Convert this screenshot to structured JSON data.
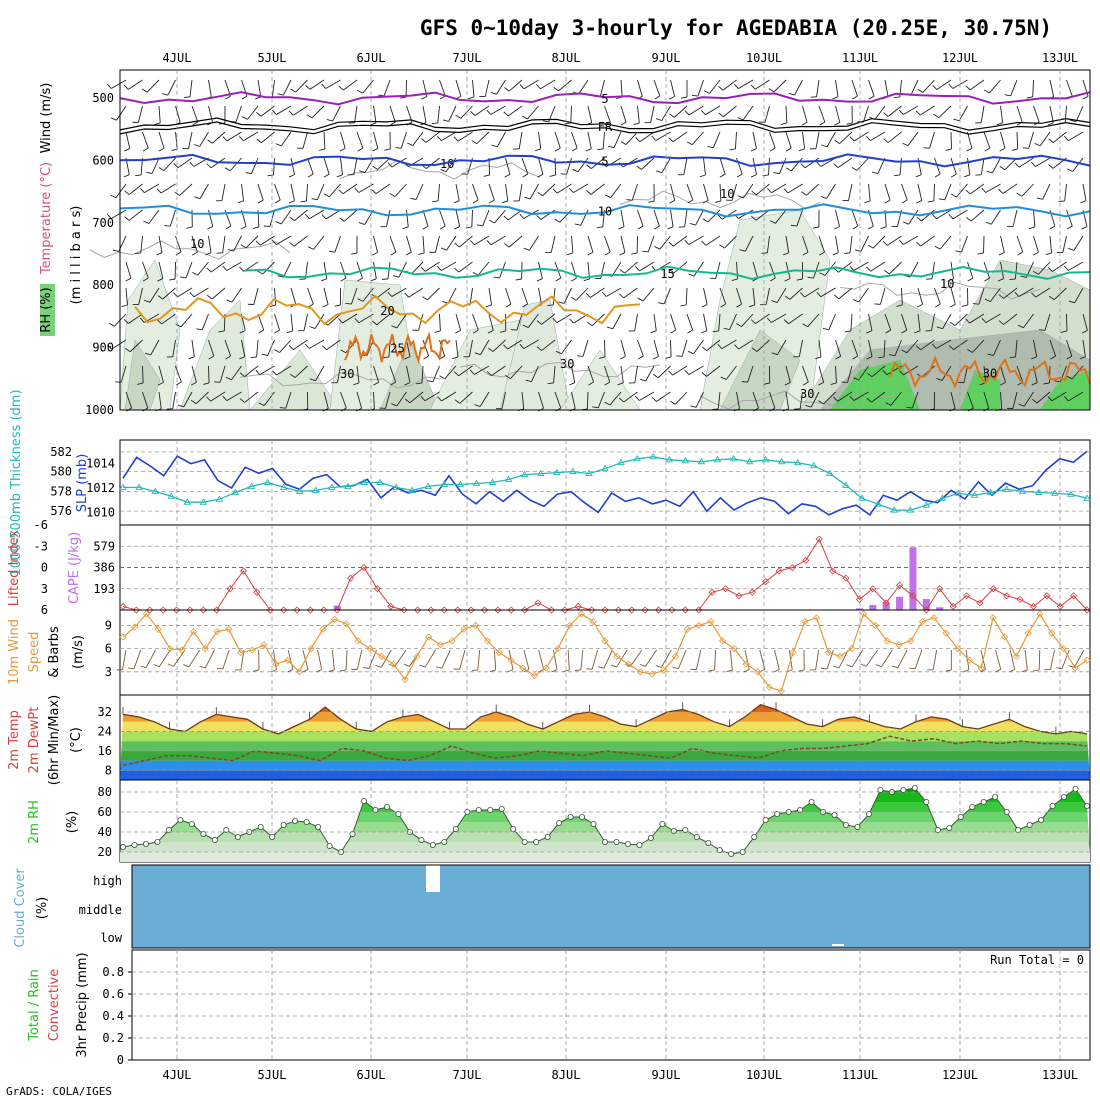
{
  "title": "GFS 0~10day 3-hourly for AGEDABIA (20.25E, 30.75N)",
  "credit": "GrADS: COLA/IGES",
  "colors": {
    "purple": "#9a1fb8",
    "blue": "#1f3fcf",
    "lightblue": "#1e8fd8",
    "teal": "#14b890",
    "orange": "#e39620",
    "darkorange": "#e0701a",
    "magenta": "#d0147a",
    "cyan": "#27b8b8",
    "red": "#d84040",
    "lilac": "#c070e8",
    "wind": "#e79a3a",
    "rhgreen": "#22c022",
    "cloud": "#6aaed6"
  },
  "chart_data": [
    {
      "panel": "upper_air",
      "type": "contour",
      "ylabels": [
        "Wind (m/s)",
        "Temperature (°C)",
        "RH (%)",
        "(m i l l i b a r s)"
      ],
      "xticks": [
        "4JUL",
        "5JUL",
        "6JUL",
        "7JUL",
        "8JUL",
        "9JUL",
        "10JUL",
        "11JUL",
        "12JUL",
        "13JUL"
      ],
      "yticks": [
        500,
        600,
        700,
        800,
        900,
        1000
      ],
      "ylim": [
        455,
        1000
      ],
      "contours": [
        {
          "label": "5",
          "color": "#9a1fb8",
          "level_mb": 500
        },
        {
          "label": "FR",
          "color": "#000000",
          "level_mb": 545
        },
        {
          "label": "5",
          "color": "#1f3fcf",
          "level_mb": 600
        },
        {
          "label": "10",
          "color": "#1e8fd8",
          "level_mb": 680
        },
        {
          "label": "15",
          "color": "#14b890",
          "level_mb": 780
        },
        {
          "label": "20",
          "color": "#e39620",
          "level_mb": 840
        },
        {
          "label": "25",
          "color": "#e0701a",
          "level_mb": 900
        },
        {
          "label": "30",
          "color": "#e0701a",
          "level_mb": 940
        }
      ],
      "grey_contours": [
        "10",
        "10",
        "10",
        "10",
        "30",
        "30",
        "30"
      ]
    },
    {
      "panel": "thickness_slp",
      "type": "line",
      "ylabels": [
        "1000-500mb Thickness (dm)",
        "SLP (mb)"
      ],
      "yticks_left": [
        576,
        578,
        580,
        582
      ],
      "yticks_right": [
        1010,
        1012,
        1014
      ],
      "series": [
        {
          "name": "SLP (mb)",
          "color": "#1f3fcf",
          "values": [
            1012.8,
            1014.5,
            1013.8,
            1013.0,
            1014.6,
            1014.0,
            1014.3,
            1012.6,
            1012.0,
            1013.7,
            1013.2,
            1013.6,
            1012.3,
            1011.9,
            1012.8,
            1013.1,
            1012.1,
            1012.2,
            1012.7,
            1011.2,
            1012.1,
            1011.6,
            1011.8,
            1011.4,
            1013.0,
            1011.5,
            1010.7,
            1011.7,
            1010.9,
            1011.8,
            1011.0,
            1010.5,
            1011.5,
            1011.7,
            1010.8,
            1010.0,
            1011.6,
            1010.9,
            1011.2,
            1010.7,
            1011.0,
            1010.5,
            1011.7,
            1010.1,
            1011.2,
            1010.2,
            1010.8,
            1011.2,
            1010.9,
            1009.9,
            1010.7,
            1010.5,
            1009.8,
            1010.3,
            1010.6,
            1009.8,
            1011.4,
            1011.0,
            1011.7,
            1011.0,
            1010.8,
            1011.8,
            1011.1,
            1012.5,
            1011.4,
            1012.4,
            1011.9,
            1012.2,
            1013.5,
            1014.4,
            1014.1,
            1015.0
          ]
        },
        {
          "name": "1000-500mb Thickness (dm)",
          "color": "#27b8b8",
          "values": [
            578.4,
            578.4,
            578.0,
            577.5,
            576.9,
            576.9,
            577.2,
            577.9,
            578.5,
            578.9,
            578.4,
            578.0,
            578.1,
            578.4,
            578.5,
            578.9,
            578.9,
            578.4,
            578.1,
            578.5,
            578.7,
            578.7,
            578.8,
            578.9,
            579.2,
            579.7,
            579.8,
            579.9,
            580.0,
            579.8,
            580.3,
            580.9,
            581.3,
            581.5,
            581.2,
            581.1,
            581.0,
            581.2,
            581.3,
            581.0,
            581.2,
            581.0,
            580.9,
            580.6,
            579.8,
            578.6,
            577.3,
            576.7,
            576.1,
            576.1,
            576.6,
            577.3,
            577.8,
            577.6,
            577.9,
            578.2,
            578.0,
            577.9,
            577.8,
            577.7,
            577.3
          ]
        }
      ]
    },
    {
      "panel": "lifted_cape",
      "type": "line",
      "ylabels": [
        "Lifted Index",
        "CAPE (J/kg)"
      ],
      "yticks_left": [
        -6,
        -3,
        0,
        3,
        6
      ],
      "yticks_right": [
        193,
        386,
        579
      ],
      "series": [
        {
          "name": "Lifted Index",
          "color": "#d84040",
          "values": [
            5.5,
            6.0,
            6.0,
            6.0,
            6.0,
            6.0,
            6.0,
            6.0,
            3.0,
            0.5,
            3.5,
            6.0,
            6.0,
            6.0,
            6.0,
            6.0,
            6.0,
            1.5,
            0.0,
            3.0,
            5.5,
            6.0,
            6.0,
            6.0,
            6.0,
            6.0,
            6.0,
            6.0,
            6.0,
            6.0,
            6.0,
            5.0,
            6.0,
            6.0,
            5.5,
            6.0,
            6.0,
            6.0,
            6.0,
            6.0,
            6.0,
            6.0,
            6.0,
            6.0,
            3.5,
            3.0,
            4.0,
            3.5,
            2.0,
            0.5,
            0.0,
            -1.0,
            -4.0,
            0.5,
            1.5,
            4.5,
            3.0,
            5.0,
            2.5,
            4.0,
            6.0,
            3.0,
            5.5,
            4.0,
            5.0,
            3.0,
            4.0,
            4.5,
            5.5,
            4.0,
            5.5,
            4.0,
            6.0
          ]
        },
        {
          "name": "CAPE (J/kg)",
          "color": "#c070e8",
          "values": [
            0,
            0,
            0,
            0,
            0,
            0,
            0,
            0,
            0,
            0,
            0,
            0,
            0,
            0,
            0,
            0,
            40,
            0,
            0,
            0,
            0,
            0,
            0,
            0,
            0,
            0,
            0,
            0,
            0,
            0,
            0,
            0,
            0,
            0,
            0,
            0,
            0,
            0,
            0,
            0,
            0,
            0,
            0,
            0,
            0,
            0,
            0,
            0,
            0,
            0,
            0,
            0,
            0,
            0,
            0,
            15,
            45,
            70,
            120,
            570,
            100,
            25,
            0,
            0,
            0,
            0,
            0,
            0,
            0,
            0,
            0,
            0,
            0
          ]
        }
      ]
    },
    {
      "panel": "wind10m",
      "type": "line",
      "ylabels": [
        "10m Wind Speed & Barbs",
        "(m/s)"
      ],
      "yticks": [
        3,
        6,
        9
      ],
      "series": [
        {
          "name": "10m Wind Speed",
          "color": "#e79a3a",
          "values": [
            7.5,
            8.8,
            10.5,
            8.5,
            6.0,
            5.8,
            8.2,
            6.0,
            8.2,
            8.5,
            5.5,
            5.8,
            6.5,
            4.0,
            4.5,
            3.0,
            6.0,
            8.5,
            9.8,
            9.2,
            7.0,
            6.0,
            5.0,
            4.0,
            2.0,
            5.0,
            7.5,
            6.5,
            7.0,
            8.5,
            9.0,
            7.0,
            5.5,
            4.5,
            3.5,
            2.5,
            3.5,
            6.0,
            9.0,
            10.5,
            9.5,
            7.0,
            5.0,
            4.0,
            3.0,
            2.7,
            3.2,
            5.0,
            8.5,
            9.0,
            9.5,
            7.0,
            6.0,
            4.0,
            3.0,
            1.0,
            0.5,
            5.5,
            9.5,
            10.0,
            5.5,
            5.0,
            6.0,
            10.5,
            9.0,
            7.0,
            6.5,
            7.0,
            9.5,
            10.0,
            8.0,
            6.0,
            4.5,
            3.5,
            10.0,
            7.5,
            5.0,
            8.0,
            10.5,
            8.0,
            6.0,
            3.5,
            4.5
          ]
        }
      ]
    },
    {
      "panel": "temp2m",
      "type": "area",
      "ylabels": [
        "2m Temp",
        "2m DewPt",
        "(6hr Min/Max)",
        "(°C)"
      ],
      "yticks": [
        8,
        16,
        24,
        32
      ],
      "series": [
        {
          "name": "2m Temp",
          "color": "#8b4513",
          "values": [
            31,
            30,
            28,
            25,
            24,
            28,
            31,
            30,
            29,
            25,
            23,
            26,
            29,
            34,
            29,
            25,
            24,
            28,
            30,
            31,
            28,
            25,
            25,
            30,
            32,
            30,
            27,
            25,
            28,
            31,
            32,
            30,
            27,
            26,
            29,
            32,
            33,
            31,
            28,
            26,
            30,
            35,
            33,
            30,
            27,
            26,
            29,
            30,
            28,
            26,
            25,
            28,
            30,
            29,
            26,
            25,
            27,
            29,
            26,
            24,
            23,
            24,
            23
          ]
        },
        {
          "name": "2m DewPt",
          "color": "#8b4513",
          "values": [
            10,
            12,
            14,
            14,
            13,
            12,
            16,
            15,
            14,
            12,
            17,
            16,
            13,
            12,
            14,
            18,
            15,
            13,
            14,
            16,
            15,
            14,
            16,
            15,
            14,
            13,
            17,
            15,
            14,
            13,
            16,
            17,
            17,
            18,
            19,
            22,
            20,
            21,
            19,
            20,
            19,
            20,
            19,
            19,
            18
          ]
        }
      ]
    },
    {
      "panel": "rh2m",
      "type": "area",
      "ylabels": [
        "2m RH",
        "(%)"
      ],
      "yticks": [
        20,
        40,
        60,
        80
      ],
      "series": [
        {
          "name": "2m RH",
          "color": "#22c022",
          "values": [
            25,
            27,
            28,
            30,
            42,
            52,
            48,
            38,
            32,
            42,
            35,
            40,
            45,
            35,
            47,
            51,
            50,
            45,
            26,
            20,
            38,
            71,
            62,
            65,
            58,
            40,
            32,
            27,
            30,
            43,
            60,
            62,
            62,
            63,
            43,
            30,
            30,
            35,
            49,
            55,
            55,
            48,
            30,
            30,
            28,
            27,
            34,
            48,
            41,
            42,
            35,
            29,
            22,
            18,
            20,
            35,
            52,
            58,
            60,
            62,
            70,
            60,
            57,
            47,
            45,
            58,
            82,
            80,
            82,
            84,
            70,
            42,
            44,
            55,
            65,
            70,
            75,
            60,
            42,
            47,
            52,
            66,
            75,
            83,
            66
          ]
        }
      ]
    },
    {
      "panel": "cloud",
      "type": "heatmap",
      "ylabels": [
        "Cloud Cover",
        "(%)"
      ],
      "yticks": [
        "high",
        "middle",
        "low"
      ]
    },
    {
      "panel": "precip",
      "type": "bar",
      "ylabels": [
        "Total / Rain",
        "Convective",
        "3hr Precip (mm)"
      ],
      "yticks": [
        0,
        0.2,
        0.4,
        0.6,
        0.8
      ],
      "ylim": [
        0,
        1.0
      ],
      "annotation": "Run Total = 0",
      "values": []
    }
  ]
}
